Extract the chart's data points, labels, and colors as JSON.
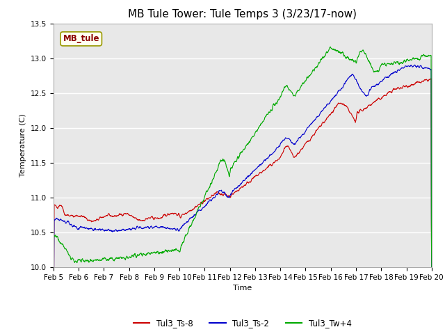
{
  "title": "MB Tule Tower: Tule Temps 3 (3/23/17-now)",
  "xlabel": "Time",
  "ylabel": "Temperature (C)",
  "legend_label": "MB_tule",
  "series_labels": [
    "Tul3_Ts-8",
    "Tul3_Ts-2",
    "Tul3_Tw+4"
  ],
  "series_colors": [
    "#cc0000",
    "#0000cc",
    "#00aa00"
  ],
  "ylim": [
    10.0,
    13.5
  ],
  "x_tick_labels": [
    "Feb 5",
    "Feb 6",
    "Feb 7",
    "Feb 8",
    "Feb 9",
    "Feb 10",
    "Feb 11",
    "Feb 12",
    "Feb 13",
    "Feb 14",
    "Feb 15",
    "Feb 16",
    "Feb 17",
    "Feb 18",
    "Feb 19",
    "Feb 20"
  ],
  "background_color": "#ffffff",
  "plot_bg_color": "#e8e8e8",
  "grid_color": "#ffffff",
  "title_fontsize": 11,
  "axis_fontsize": 8,
  "tick_fontsize": 7.5
}
